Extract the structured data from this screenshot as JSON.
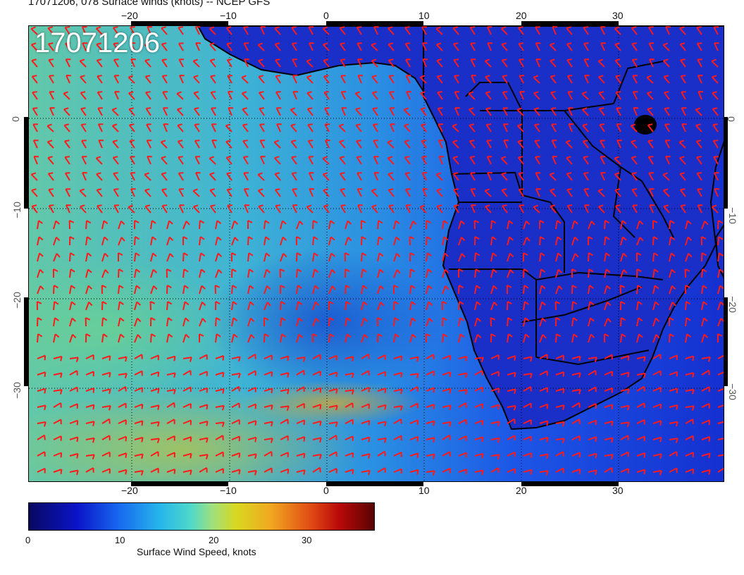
{
  "header": {
    "title": "17071206, 078 Surface winds (knots) -- NCEP GFS"
  },
  "map": {
    "date_stamp": "17071206",
    "longitude_ticks": [
      "−20",
      "−10",
      "0",
      "10",
      "20",
      "30"
    ],
    "latitude_ticks_left": [
      "0",
      "−10",
      "−20",
      "−30"
    ],
    "latitude_ticks_right": [
      "0",
      "−10",
      "−20",
      "−30"
    ],
    "land_color": "#1a2ec8",
    "barb_color": "#ff1a1a",
    "grid_color": "#000000"
  },
  "colorbar": {
    "ticks": [
      "0",
      "10",
      "20",
      "30"
    ],
    "title": "Surface Wind Speed, knots",
    "range": [
      0,
      37
    ]
  }
}
